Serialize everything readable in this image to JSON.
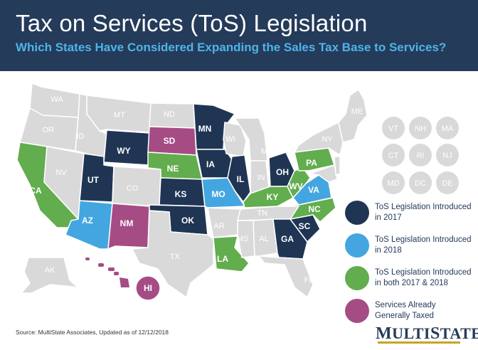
{
  "header": {
    "title": "Tax on Services (ToS) Legislation",
    "subtitle": "Which States Have Considered Expanding the Sales Tax Base to Services?"
  },
  "colors": {
    "header_bg": "#243b5a",
    "subtitle": "#4fb3e8",
    "introduced_2017": "#1f3553",
    "introduced_2018": "#43a6e0",
    "introduced_both": "#62ad4d",
    "already_taxed": "#a54c85",
    "none": "#d9d9d9"
  },
  "legend": [
    {
      "label": "ToS Legislation Introduced in 2017",
      "color": "#1f3553"
    },
    {
      "label": "ToS Legislation Introduced in 2018",
      "color": "#43a6e0"
    },
    {
      "label": "ToS Legislation Introduced in both 2017 & 2018",
      "color": "#62ad4d"
    },
    {
      "label": "Services Already Generally Taxed",
      "color": "#a54c85"
    }
  ],
  "state_labels": {
    "WA": "WA",
    "OR": "OR",
    "CA": "CA",
    "ID": "ID",
    "NV": "NV",
    "MT": "MT",
    "WY": "WY",
    "UT": "UT",
    "AZ": "AZ",
    "CO": "CO",
    "NM": "NM",
    "ND": "ND",
    "SD": "SD",
    "NE": "NE",
    "KS": "KS",
    "OK": "OK",
    "TX": "TX",
    "MN": "MN",
    "IA": "IA",
    "MO": "MO",
    "AR": "AR",
    "LA": "LA",
    "WI": "WI",
    "IL": "IL",
    "MI": "MI",
    "IN": "IN",
    "OH": "OH",
    "KY": "KY",
    "TN": "TN",
    "MS": "MS",
    "AL": "AL",
    "GA": "GA",
    "FL": "FL",
    "SC": "SC",
    "NC": "NC",
    "VA": "VA",
    "WV": "WV",
    "PA": "PA",
    "NY": "NY",
    "ME": "ME",
    "AK": "AK",
    "HI": "HI"
  },
  "small_states": [
    "VT",
    "NH",
    "MA",
    "CT",
    "RI",
    "NJ",
    "MD",
    "DC",
    "DE"
  ],
  "source": "Source: MultiState Associates, Updated as of 12/12/2018",
  "logo": {
    "first": "M",
    "rest1": "ULTI",
    "second": "S",
    "rest2": "TATE"
  }
}
